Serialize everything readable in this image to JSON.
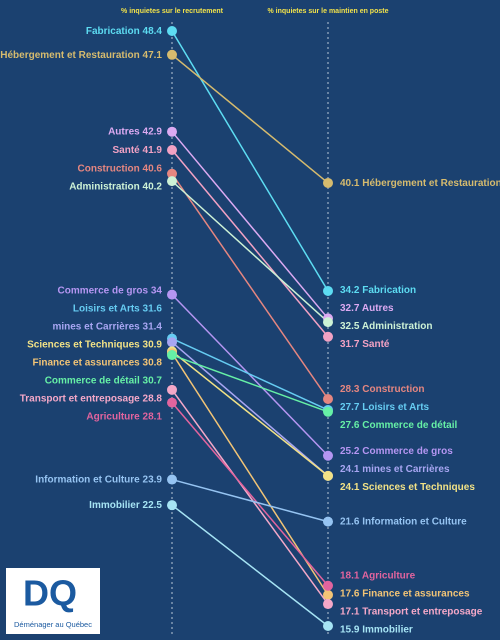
{
  "chart_data": {
    "type": "slope",
    "headers": [
      "% inquietes sur le recrutement",
      "% inquietes sur le maintien en poste"
    ],
    "series": [
      {
        "name": "Fabrication",
        "color": "#5ddcf2",
        "values": [
          48.4,
          34.2
        ]
      },
      {
        "name": "Hébergement et Restauration",
        "color": "#d6bb6e",
        "values": [
          47.1,
          40.1
        ]
      },
      {
        "name": "Autres",
        "color": "#dcaaf2",
        "values": [
          42.9,
          32.7
        ]
      },
      {
        "name": "Santé",
        "color": "#f2a2c4",
        "values": [
          41.9,
          31.7
        ]
      },
      {
        "name": "Construction",
        "color": "#e58680",
        "values": [
          40.6,
          28.3
        ]
      },
      {
        "name": "Administration",
        "color": "#cdf2d6",
        "values": [
          40.2,
          32.5
        ]
      },
      {
        "name": "Commerce de gros",
        "color": "#b596f2",
        "values": [
          34,
          25.2
        ]
      },
      {
        "name": "Loisirs et Arts",
        "color": "#66ccf2",
        "values": [
          31.6,
          27.7
        ]
      },
      {
        "name": "mines et Carrières",
        "color": "#a8a6f2",
        "values": [
          31.4,
          24.1
        ]
      },
      {
        "name": "Sciences et Techniques",
        "color": "#f2e286",
        "values": [
          30.9,
          24.1
        ]
      },
      {
        "name": "Finance et assurances",
        "color": "#f2c476",
        "values": [
          30.8,
          17.6
        ]
      },
      {
        "name": "Commerce de détail",
        "color": "#66f0a6",
        "values": [
          30.7,
          27.6
        ]
      },
      {
        "name": "Transport et entreposage",
        "color": "#f4a8c8",
        "values": [
          28.8,
          17.1
        ]
      },
      {
        "name": "Agriculture",
        "color": "#e2649e",
        "values": [
          28.1,
          18.1
        ]
      },
      {
        "name": "Information et Culture",
        "color": "#96c4f2",
        "values": [
          23.9,
          21.6
        ]
      },
      {
        "name": "Immobilier",
        "color": "#a6e4f4",
        "values": [
          22.5,
          15.9
        ]
      }
    ]
  },
  "logo": {
    "letters": "DQ",
    "name": "Déménager au Québec"
  }
}
